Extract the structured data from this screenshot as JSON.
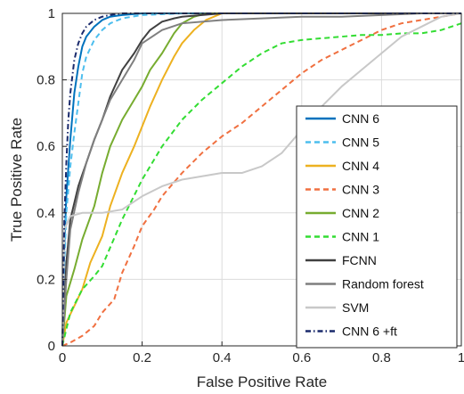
{
  "chart_data": {
    "type": "line",
    "title": "",
    "xlabel": "False Positive Rate",
    "ylabel": "True Positive Rate",
    "xlim": [
      0,
      1
    ],
    "ylim": [
      0,
      1
    ],
    "xticks": [
      "0",
      "0.2",
      "0.4",
      "0.6",
      "0.8",
      "1"
    ],
    "yticks": [
      "0",
      "0.2",
      "0.4",
      "0.6",
      "0.8",
      "1"
    ],
    "grid": true,
    "legend_position": "bottom-right",
    "series": [
      {
        "name": "CNN 6",
        "color": "#0072BD",
        "dash": "solid",
        "x": [
          0,
          0.005,
          0.01,
          0.02,
          0.03,
          0.04,
          0.05,
          0.06,
          0.08,
          0.1,
          0.12,
          0.15,
          0.2,
          0.3,
          1.0
        ],
        "y": [
          0,
          0.3,
          0.45,
          0.62,
          0.76,
          0.84,
          0.9,
          0.93,
          0.96,
          0.98,
          0.99,
          0.995,
          1.0,
          1.0,
          1.0
        ]
      },
      {
        "name": "CNN 5",
        "color": "#4DBEEE",
        "dash": "dash",
        "x": [
          0,
          0.005,
          0.01,
          0.02,
          0.03,
          0.04,
          0.05,
          0.06,
          0.08,
          0.1,
          0.12,
          0.15,
          0.2,
          0.3,
          1.0
        ],
        "y": [
          0,
          0.25,
          0.4,
          0.54,
          0.64,
          0.73,
          0.82,
          0.87,
          0.92,
          0.95,
          0.97,
          0.985,
          0.995,
          1.0,
          1.0
        ]
      },
      {
        "name": "CNN 4",
        "color": "#EDB120",
        "dash": "solid",
        "x": [
          0,
          0.01,
          0.03,
          0.05,
          0.07,
          0.1,
          0.12,
          0.15,
          0.18,
          0.2,
          0.22,
          0.25,
          0.28,
          0.3,
          0.33,
          0.36,
          0.4,
          0.45,
          1.0
        ],
        "y": [
          0,
          0.07,
          0.12,
          0.17,
          0.25,
          0.33,
          0.42,
          0.52,
          0.6,
          0.66,
          0.72,
          0.8,
          0.87,
          0.91,
          0.95,
          0.98,
          1.0,
          1.0,
          1.0
        ]
      },
      {
        "name": "CNN 3",
        "color": "#F07040",
        "dash": "dash",
        "x": [
          0,
          0.02,
          0.05,
          0.08,
          0.1,
          0.13,
          0.15,
          0.18,
          0.2,
          0.23,
          0.25,
          0.3,
          0.35,
          0.4,
          0.45,
          0.5,
          0.55,
          0.6,
          0.65,
          0.7,
          0.75,
          0.8,
          0.85,
          0.9,
          0.95,
          1.0
        ],
        "y": [
          0,
          0.01,
          0.03,
          0.06,
          0.1,
          0.14,
          0.22,
          0.3,
          0.36,
          0.41,
          0.45,
          0.52,
          0.58,
          0.63,
          0.67,
          0.72,
          0.77,
          0.82,
          0.86,
          0.89,
          0.92,
          0.95,
          0.97,
          0.98,
          0.99,
          1.0
        ]
      },
      {
        "name": "CNN 2",
        "color": "#77AC30",
        "dash": "solid",
        "x": [
          0,
          0.01,
          0.03,
          0.05,
          0.08,
          0.1,
          0.12,
          0.15,
          0.18,
          0.2,
          0.22,
          0.25,
          0.28,
          0.3,
          0.33,
          0.36,
          0.4,
          1.0
        ],
        "y": [
          0,
          0.15,
          0.23,
          0.32,
          0.42,
          0.52,
          0.6,
          0.68,
          0.74,
          0.78,
          0.83,
          0.88,
          0.94,
          0.97,
          0.99,
          1.0,
          1.0,
          1.0
        ]
      },
      {
        "name": "CNN 1",
        "color": "#33DD33",
        "dash": "dash",
        "x": [
          0,
          0.02,
          0.05,
          0.08,
          0.1,
          0.15,
          0.2,
          0.25,
          0.3,
          0.35,
          0.4,
          0.45,
          0.5,
          0.55,
          0.6,
          0.65,
          0.7,
          0.75,
          0.8,
          0.85,
          0.9,
          0.95,
          1.0
        ],
        "y": [
          0,
          0.1,
          0.17,
          0.21,
          0.24,
          0.38,
          0.5,
          0.6,
          0.68,
          0.74,
          0.79,
          0.84,
          0.88,
          0.91,
          0.92,
          0.925,
          0.93,
          0.935,
          0.935,
          0.94,
          0.94,
          0.95,
          0.97
        ]
      },
      {
        "name": "FCNN",
        "color": "#404040",
        "dash": "solid",
        "x": [
          0,
          0.01,
          0.02,
          0.04,
          0.06,
          0.08,
          0.1,
          0.12,
          0.15,
          0.18,
          0.2,
          0.22,
          0.25,
          0.28,
          0.3,
          0.35,
          0.4,
          1.0
        ],
        "y": [
          0,
          0.25,
          0.38,
          0.48,
          0.55,
          0.62,
          0.68,
          0.75,
          0.83,
          0.88,
          0.92,
          0.95,
          0.975,
          0.985,
          0.99,
          0.995,
          1.0,
          1.0
        ]
      },
      {
        "name": "Random forest",
        "color": "#7F7F7F",
        "dash": "solid",
        "x": [
          0,
          0.01,
          0.02,
          0.04,
          0.06,
          0.08,
          0.1,
          0.12,
          0.15,
          0.18,
          0.2,
          0.25,
          0.3,
          0.4,
          0.5,
          0.6,
          0.7,
          0.8,
          0.9,
          1.0
        ],
        "y": [
          0,
          0.2,
          0.35,
          0.46,
          0.55,
          0.62,
          0.68,
          0.74,
          0.8,
          0.86,
          0.91,
          0.95,
          0.97,
          0.98,
          0.985,
          0.99,
          0.99,
          0.995,
          1.0,
          1.0
        ]
      },
      {
        "name": "SVM",
        "color": "#C8C8C8",
        "dash": "solid",
        "x": [
          0,
          0.005,
          0.02,
          0.05,
          0.08,
          0.1,
          0.15,
          0.2,
          0.25,
          0.3,
          0.35,
          0.4,
          0.45,
          0.5,
          0.55,
          0.6,
          0.65,
          0.7,
          0.75,
          0.8,
          0.85,
          0.9,
          0.95,
          1.0
        ],
        "y": [
          0,
          0.35,
          0.39,
          0.4,
          0.4,
          0.4,
          0.41,
          0.45,
          0.48,
          0.5,
          0.51,
          0.52,
          0.52,
          0.54,
          0.58,
          0.65,
          0.72,
          0.78,
          0.83,
          0.88,
          0.93,
          0.96,
          0.99,
          1.0
        ]
      },
      {
        "name": "CNN 6 +ft",
        "color": "#1A2A6C",
        "dash": "dashdot",
        "x": [
          0,
          0.005,
          0.01,
          0.015,
          0.02,
          0.03,
          0.04,
          0.05,
          0.06,
          0.08,
          0.1,
          0.12,
          0.15,
          0.2,
          1.0
        ],
        "y": [
          0,
          0.38,
          0.55,
          0.68,
          0.76,
          0.86,
          0.91,
          0.94,
          0.96,
          0.98,
          0.99,
          0.995,
          1.0,
          1.0,
          1.0
        ]
      }
    ]
  }
}
